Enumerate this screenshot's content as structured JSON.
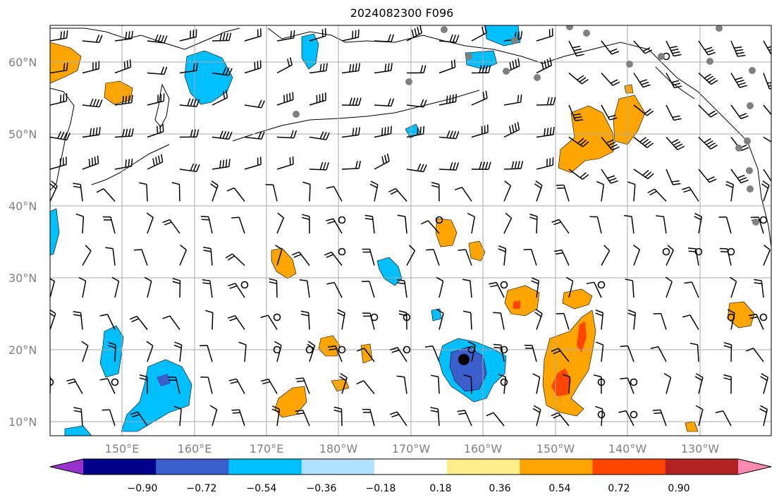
{
  "title": "2024082300 F096",
  "map": {
    "lat_labels": [
      "60°N",
      "50°N",
      "40°N",
      "30°N",
      "20°N",
      "10°N"
    ],
    "lon_labels": [
      "150°E",
      "160°E",
      "170°E",
      "180°W",
      "170°W",
      "160°W",
      "150°W",
      "140°W",
      "130°W"
    ],
    "extent": {
      "lon_min": 140,
      "lon_max": 240,
      "lat_min": 8,
      "lat_max": 65
    }
  },
  "colorbar": {
    "labels": [
      "−0.90",
      "−0.72",
      "−0.54",
      "−0.36",
      "−0.18",
      "0.18",
      "0.36",
      "0.54",
      "0.72",
      "0.90"
    ],
    "colors": [
      "#9932cc",
      "#00008b",
      "#3a5fcd",
      "#00bfff",
      "#b0e2ff",
      "#ffffff",
      "#ffec8b",
      "#ffa500",
      "#ff4500",
      "#b22222",
      "#ff89b0"
    ]
  },
  "colors": {
    "neg_light": "#00bfff",
    "neg_medium": "#3a5fcd",
    "pos_medium": "#ffa500",
    "pos_strong": "#ff4500",
    "grid": "#a9a9a9",
    "station": "#808080"
  }
}
